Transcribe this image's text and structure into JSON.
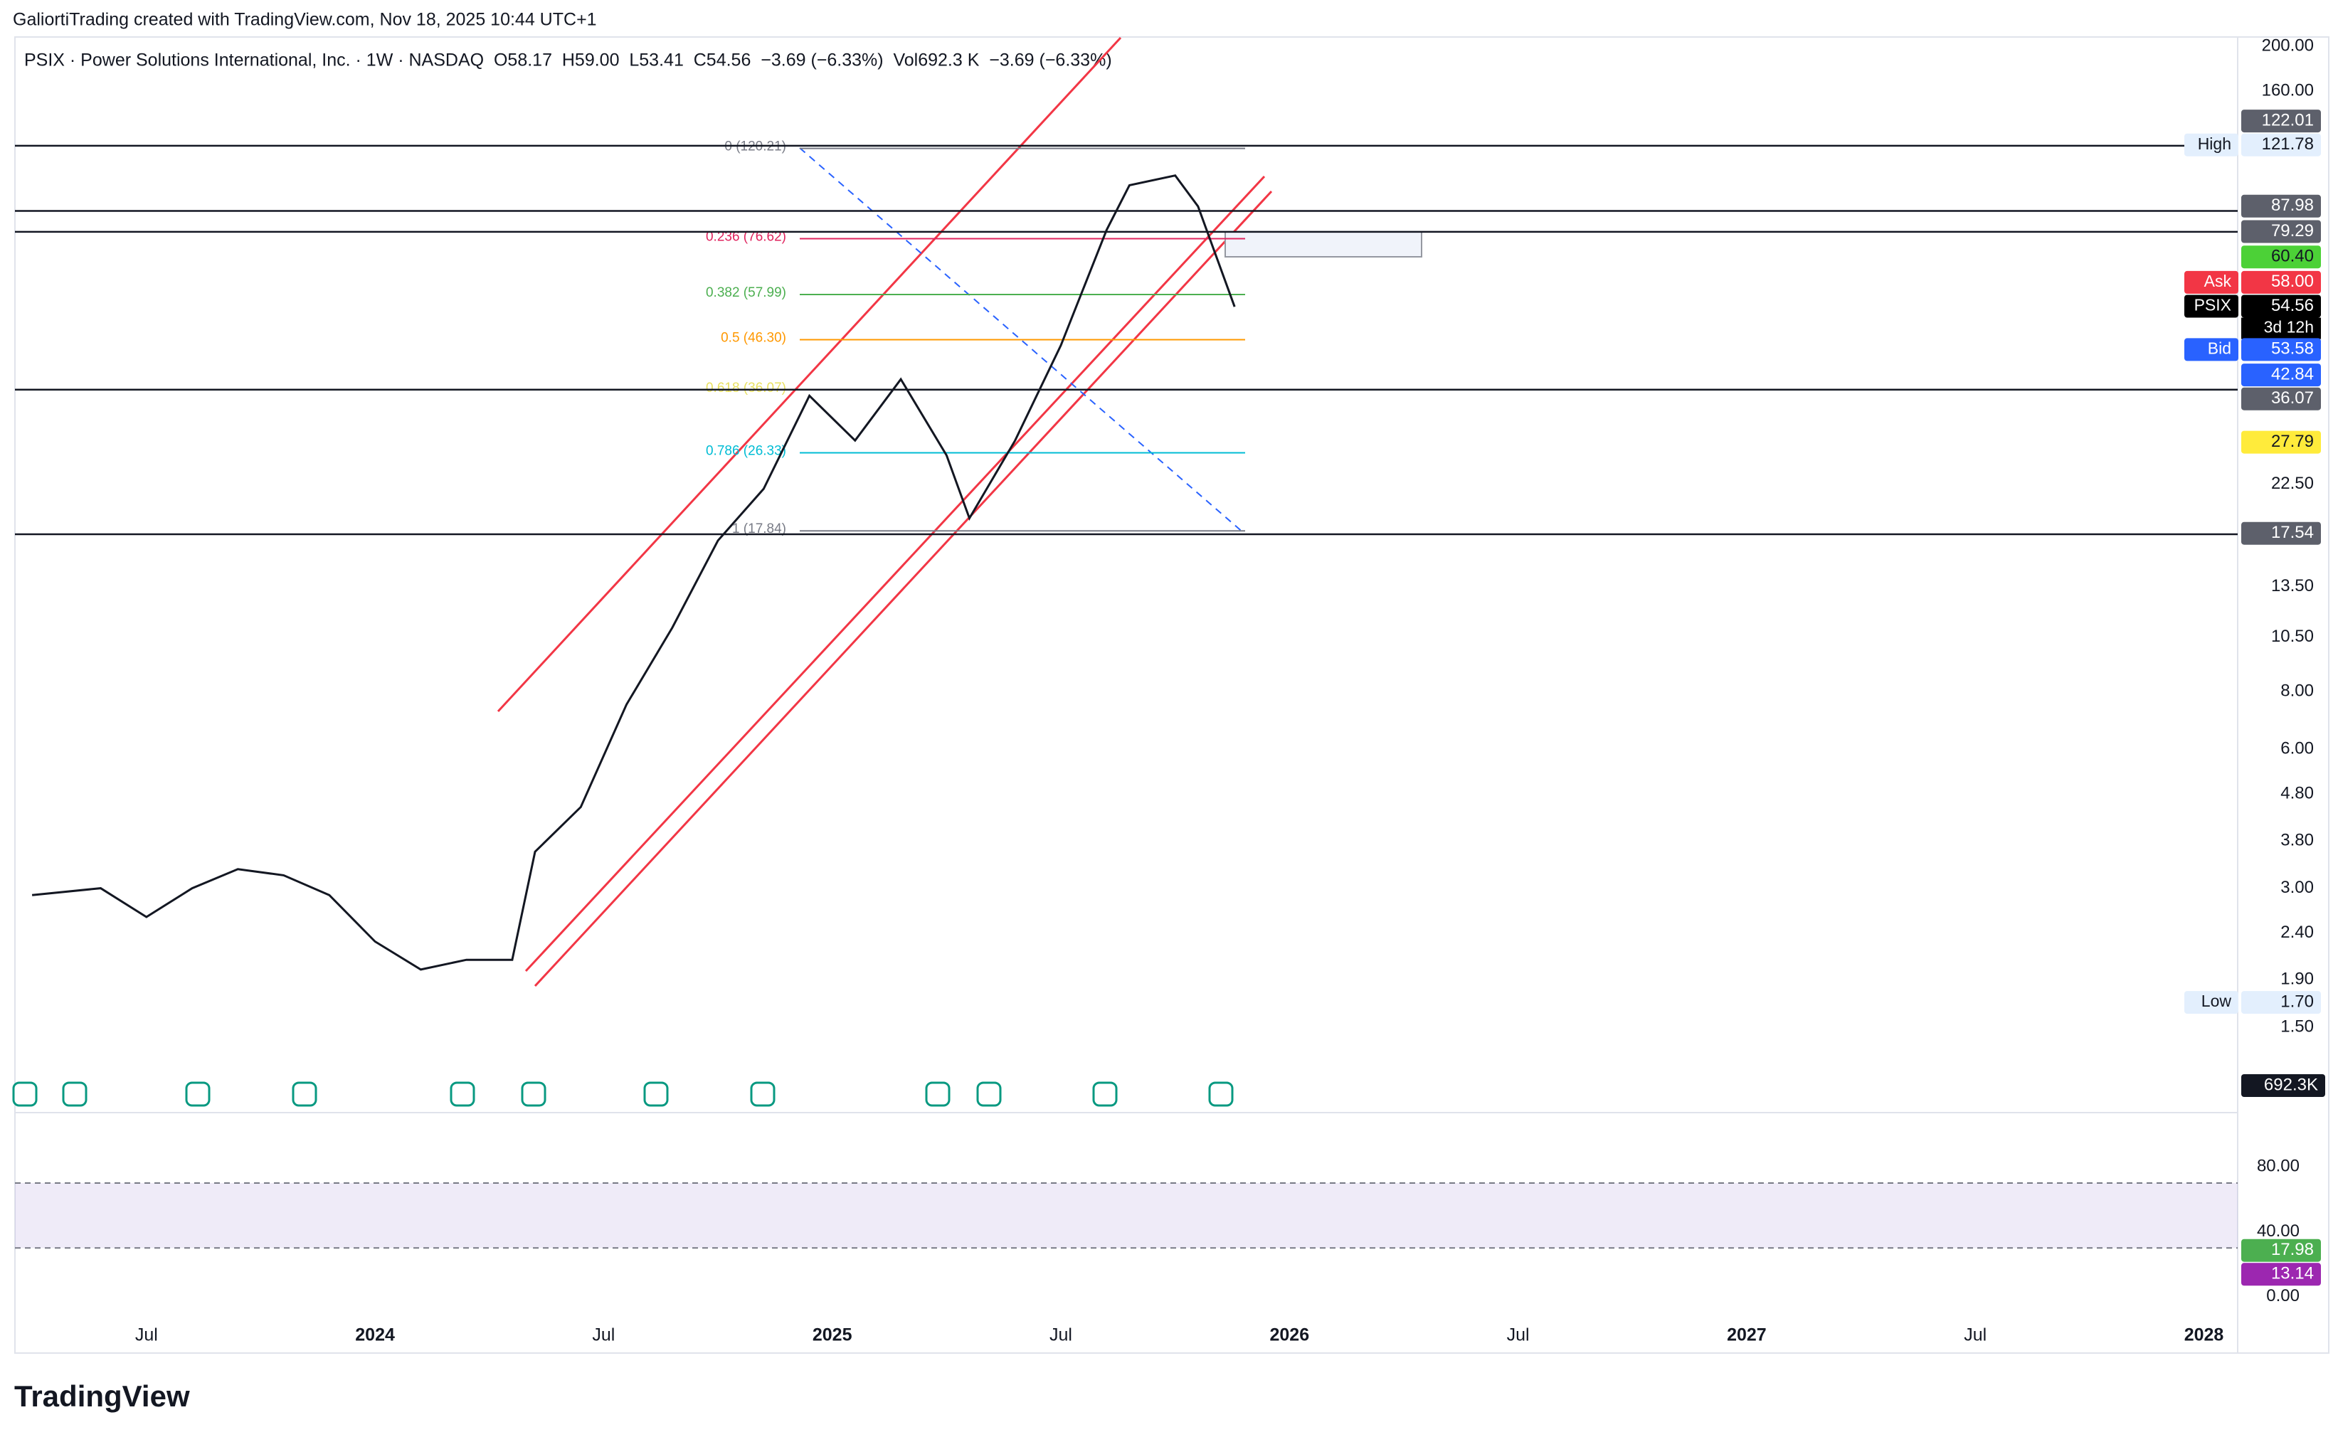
{
  "header": {
    "attribution": "GaliortiTrading created with TradingView.com, Nov 18, 2025 10:44 UTC+1",
    "symbol_line": "PSIX · Power Solutions International, Inc. · 1W · NASDAQ  O58.17  H59.00  L53.41  C54.56  −3.69 (−6.33%)  Vol692.3 K  −3.69 (−6.33%)"
  },
  "price_axis": {
    "scale": "log",
    "ticks": [
      {
        "value": 200,
        "label": "200.00"
      },
      {
        "value": 160,
        "label": "160.00"
      },
      {
        "value": 22.5,
        "label": "22.50"
      },
      {
        "value": 13.5,
        "label": "13.50"
      },
      {
        "value": 10.5,
        "label": "10.50"
      },
      {
        "value": 8,
        "label": "8.00"
      },
      {
        "value": 6,
        "label": "6.00"
      },
      {
        "value": 4.8,
        "label": "4.80"
      },
      {
        "value": 3.8,
        "label": "3.80"
      },
      {
        "value": 3,
        "label": "3.00"
      },
      {
        "value": 2.4,
        "label": "2.40"
      },
      {
        "value": 1.9,
        "label": "1.90"
      },
      {
        "value": 1.5,
        "label": "1.50"
      }
    ]
  },
  "time_axis": {
    "ticks": [
      {
        "value": 2023.5,
        "label": "Jul"
      },
      {
        "value": 2024,
        "label": "2024"
      },
      {
        "value": 2024.5,
        "label": "Jul"
      },
      {
        "value": 2025,
        "label": "2025"
      },
      {
        "value": 2025.5,
        "label": "Jul"
      },
      {
        "value": 2026,
        "label": "2026"
      },
      {
        "value": 2026.5,
        "label": "Jul"
      },
      {
        "value": 2027,
        "label": "2027"
      },
      {
        "value": 2027.5,
        "label": "Jul"
      },
      {
        "value": 2028,
        "label": "2028"
      }
    ]
  },
  "price_line": {
    "x": [
      2023.25,
      2023.4,
      2023.5,
      2023.6,
      2023.7,
      2023.8,
      2023.9,
      2024.0,
      2024.1,
      2024.2,
      2024.3,
      2024.35,
      2024.45,
      2024.55,
      2024.65,
      2024.75,
      2024.85,
      2024.95,
      2025.05,
      2025.15,
      2025.25,
      2025.3,
      2025.4,
      2025.5,
      2025.6,
      2025.65,
      2025.75,
      2025.8,
      2025.88
    ],
    "close": [
      2.9,
      3.0,
      2.6,
      3.0,
      3.3,
      3.2,
      2.9,
      2.3,
      2.0,
      2.1,
      2.1,
      3.6,
      4.5,
      7.5,
      11,
      17,
      22,
      35,
      28,
      38,
      26,
      19,
      28,
      45,
      80,
      100,
      105,
      90,
      54.56
    ]
  },
  "fib_levels": [
    {
      "label": "0 (120.21)",
      "value": 120.21,
      "color": "#787b86"
    },
    {
      "label": "0.236 (76.62)",
      "value": 76.62,
      "color": "#e0245e"
    },
    {
      "label": "0.382 (57.99)",
      "value": 57.99,
      "color": "#4caf50"
    },
    {
      "label": "0.5 (46.30)",
      "value": 46.3,
      "color": "#ff9800"
    },
    {
      "label": "0.618 (36.07)",
      "value": 36.07,
      "color": "#e8e060"
    },
    {
      "label": "0.786 (26.33)",
      "value": 26.33,
      "color": "#00bcd4"
    },
    {
      "label": "1 (17.84)",
      "value": 17.84,
      "color": "#787b86"
    }
  ],
  "price_tags": [
    {
      "text": "122.01",
      "value": 122.01,
      "color": "#5d606b"
    },
    {
      "caption": "High",
      "text": "121.78",
      "value": 121.78,
      "color": "#e3effd",
      "line": true
    },
    {
      "text": "87.98",
      "value": 87.98,
      "color": "#5d606b",
      "line": true
    },
    {
      "text": "79.29",
      "value": 79.29,
      "color": "#5d606b",
      "line": true
    },
    {
      "text": "60.40",
      "value": 60.4,
      "color": "#4cd137"
    },
    {
      "caption": "Ask",
      "text": "58.00",
      "value": 58,
      "color": "#f23645"
    },
    {
      "caption": "PSIX",
      "text": "54.56",
      "value": 54.56,
      "color": "#000000",
      "sub": "3d 12h"
    },
    {
      "caption": "Bid",
      "text": "53.58",
      "value": 53.58,
      "color": "#2962ff"
    },
    {
      "text": "42.84",
      "value": 42.84,
      "color": "#2962ff"
    },
    {
      "text": "36.07",
      "value": 36.07,
      "color": "#5d606b",
      "line": true
    },
    {
      "text": "27.79",
      "value": 27.79,
      "color": "#ffeb3b"
    },
    {
      "text": "17.54",
      "value": 17.54,
      "color": "#5d606b",
      "line": true
    },
    {
      "caption": "Low",
      "text": "1.70",
      "value": 1.7,
      "color": "#e3effd"
    }
  ],
  "volume_tag": "692.3K",
  "oscillator": {
    "ticks": [
      {
        "value": 80,
        "label": "80.00"
      },
      {
        "value": 40,
        "label": "40.00"
      },
      {
        "value": 0,
        "label": "0.00"
      }
    ],
    "band": [
      30,
      70
    ],
    "tags": [
      {
        "text": "17.98",
        "value": 17.98,
        "color": "#4caf50"
      },
      {
        "text": "13.14",
        "value": 13.14,
        "color": "#9c27b0"
      }
    ]
  },
  "brand": "TradingView"
}
